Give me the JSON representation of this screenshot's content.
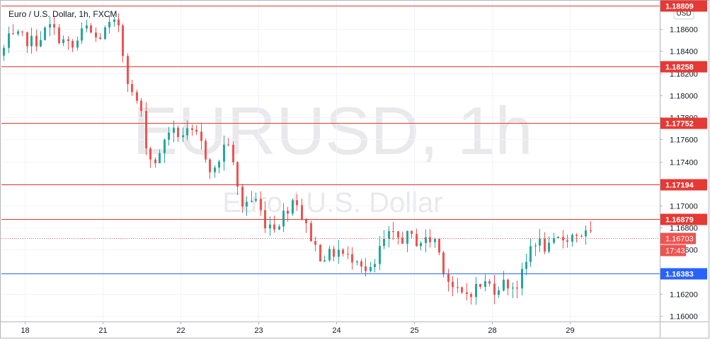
{
  "title": "Euro / U.S. Dollar, 1h, FXCM",
  "watermark": {
    "symbol": "EURUSD, 1h",
    "description": "Euro / U.S. Dollar"
  },
  "currency_button": "USD",
  "colors": {
    "up": "#26a69a",
    "down": "#ef5350",
    "resistance": "#e53935",
    "support": "#2962ff",
    "current": "#ef5350"
  },
  "chart_data": {
    "type": "candlestick",
    "y_ticks": [
      "1.16000",
      "1.16200",
      "1.16400",
      "1.16600",
      "1.16800",
      "1.17000",
      "1.17200",
      "1.17400",
      "1.17600",
      "1.17800",
      "1.18000",
      "1.18200",
      "1.18400",
      "1.18600"
    ],
    "ylim": [
      1.1595,
      1.1885
    ],
    "x_ticks": [
      {
        "label": "18",
        "x": 0.05
      },
      {
        "label": "21",
        "x": 1.05
      },
      {
        "label": "22",
        "x": 2.05
      },
      {
        "label": "23",
        "x": 3.05
      },
      {
        "label": "24",
        "x": 4.05
      },
      {
        "label": "25",
        "x": 5.05
      },
      {
        "label": "28",
        "x": 6.05
      },
      {
        "label": "29",
        "x": 7.05
      }
    ],
    "xlim": [
      -0.25,
      8.2
    ],
    "levels": [
      {
        "value": "1.18809",
        "y": 1.18809,
        "kind": "resistance"
      },
      {
        "value": "1.18258",
        "y": 1.18258,
        "kind": "resistance"
      },
      {
        "value": "1.17752",
        "y": 1.17752,
        "kind": "resistance"
      },
      {
        "value": "1.17194",
        "y": 1.17194,
        "kind": "resistance"
      },
      {
        "value": "1.16879",
        "y": 1.16879,
        "kind": "resistance"
      },
      {
        "value": "1.16383",
        "y": 1.16383,
        "kind": "support"
      }
    ],
    "current_price": {
      "value": "1.16703",
      "y": 1.16703,
      "countdown": "17:43"
    },
    "anchors": [
      [
        -0.25,
        1.183
      ],
      [
        -0.15,
        1.185
      ],
      [
        0.0,
        1.1852
      ],
      [
        0.2,
        1.1848
      ],
      [
        0.4,
        1.1862
      ],
      [
        0.55,
        1.185
      ],
      [
        0.7,
        1.1842
      ],
      [
        0.85,
        1.1862
      ],
      [
        1.0,
        1.185
      ],
      [
        1.15,
        1.1862
      ],
      [
        1.3,
        1.1865
      ],
      [
        1.35,
        1.183
      ],
      [
        1.45,
        1.18
      ],
      [
        1.55,
        1.1792
      ],
      [
        1.62,
        1.176
      ],
      [
        1.7,
        1.174
      ],
      [
        1.8,
        1.1742
      ],
      [
        1.9,
        1.177
      ],
      [
        2.0,
        1.1765
      ],
      [
        2.15,
        1.1765
      ],
      [
        2.3,
        1.1762
      ],
      [
        2.4,
        1.1745
      ],
      [
        2.5,
        1.1728
      ],
      [
        2.6,
        1.1748
      ],
      [
        2.68,
        1.1762
      ],
      [
        2.75,
        1.1735
      ],
      [
        2.85,
        1.17
      ],
      [
        2.95,
        1.1705
      ],
      [
        3.05,
        1.1705
      ],
      [
        3.15,
        1.1685
      ],
      [
        3.3,
        1.1682
      ],
      [
        3.45,
        1.1698
      ],
      [
        3.55,
        1.171
      ],
      [
        3.65,
        1.1685
      ],
      [
        3.75,
        1.1672
      ],
      [
        3.85,
        1.1655
      ],
      [
        4.0,
        1.1655
      ],
      [
        4.1,
        1.166
      ],
      [
        4.2,
        1.1652
      ],
      [
        4.35,
        1.1655
      ],
      [
        4.45,
        1.164
      ],
      [
        4.55,
        1.164
      ],
      [
        4.65,
        1.1665
      ],
      [
        4.75,
        1.1672
      ],
      [
        4.9,
        1.167
      ],
      [
        5.0,
        1.1672
      ],
      [
        5.1,
        1.1668
      ],
      [
        5.25,
        1.1668
      ],
      [
        5.35,
        1.167
      ],
      [
        5.42,
        1.165
      ],
      [
        5.5,
        1.1635
      ],
      [
        5.6,
        1.1622
      ],
      [
        5.7,
        1.1618
      ],
      [
        5.85,
        1.1625
      ],
      [
        6.0,
        1.163
      ],
      [
        6.1,
        1.1625
      ],
      [
        6.2,
        1.163
      ],
      [
        6.3,
        1.1628
      ],
      [
        6.4,
        1.1628
      ],
      [
        6.5,
        1.1645
      ],
      [
        6.6,
        1.167
      ],
      [
        6.7,
        1.1665
      ],
      [
        6.8,
        1.166
      ],
      [
        6.9,
        1.1668
      ],
      [
        7.05,
        1.1672
      ],
      [
        7.2,
        1.1675
      ],
      [
        7.35,
        1.1672
      ]
    ],
    "candle_step": 0.0588
  }
}
